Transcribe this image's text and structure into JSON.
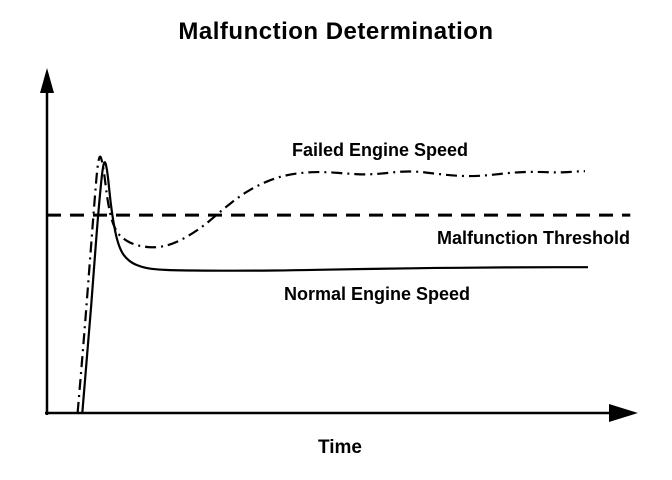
{
  "title": "Malfunction Determination",
  "chart_data": {
    "type": "line",
    "title": "Malfunction Determination",
    "xlabel": "Time",
    "ylabel": "",
    "x_range": [
      0,
      100
    ],
    "y_range": [
      0,
      100
    ],
    "grid": false,
    "legend_position": "inline-annotations",
    "background": "#ffffff",
    "stroke_color": "#000000",
    "series": [
      {
        "name": "Failed Engine Speed",
        "style": "dashdot",
        "points": [
          [
            5.2,
            0
          ],
          [
            6.2,
            20
          ],
          [
            7.2,
            42
          ],
          [
            8.0,
            60
          ],
          [
            8.8,
            76
          ],
          [
            9.5,
            73
          ],
          [
            10.4,
            60
          ],
          [
            11.6,
            53
          ],
          [
            13.5,
            50
          ],
          [
            16,
            48.5
          ],
          [
            18.5,
            48.2
          ],
          [
            21,
            49
          ],
          [
            24,
            51.5
          ],
          [
            27,
            55
          ],
          [
            30,
            59.5
          ],
          [
            33,
            63.5
          ],
          [
            36,
            66.5
          ],
          [
            39,
            68.6
          ],
          [
            42,
            69.8
          ],
          [
            45,
            70.3
          ],
          [
            48,
            70.2
          ],
          [
            51,
            69.8
          ],
          [
            54,
            69.5
          ],
          [
            57,
            69.8
          ],
          [
            60,
            70.4
          ],
          [
            63,
            70.4
          ],
          [
            66,
            69.8
          ],
          [
            69,
            69.2
          ],
          [
            72,
            69.0
          ],
          [
            75,
            69.3
          ],
          [
            78,
            69.9
          ],
          [
            81,
            70.3
          ],
          [
            84,
            70.3
          ],
          [
            87,
            70.1
          ],
          [
            90,
            70.4
          ],
          [
            91.5,
            70.5
          ]
        ]
      },
      {
        "name": "Malfunction Threshold",
        "style": "dashed",
        "points": [
          [
            0,
            57.7
          ],
          [
            99.2,
            57.7
          ]
        ]
      },
      {
        "name": "Normal Engine Speed",
        "style": "solid",
        "points": [
          [
            6.0,
            0
          ],
          [
            7.0,
            20
          ],
          [
            8.0,
            42
          ],
          [
            8.8,
            60
          ],
          [
            9.6,
            74
          ],
          [
            10.2,
            72
          ],
          [
            11.0,
            58
          ],
          [
            12.2,
            48
          ],
          [
            14,
            44
          ],
          [
            16.5,
            42.3
          ],
          [
            19,
            41.8
          ],
          [
            22,
            41.6
          ],
          [
            28,
            41.5
          ],
          [
            35,
            41.5
          ],
          [
            42,
            41.6
          ],
          [
            50,
            41.9
          ],
          [
            58,
            42.1
          ],
          [
            66,
            42.3
          ],
          [
            74,
            42.4
          ],
          [
            82,
            42.5
          ],
          [
            92,
            42.5
          ]
        ]
      }
    ]
  }
}
